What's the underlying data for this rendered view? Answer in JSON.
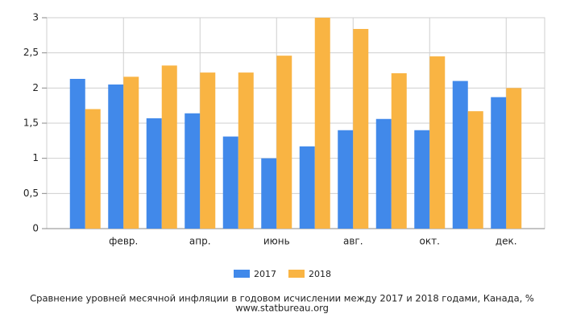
{
  "chart_data": {
    "type": "bar",
    "title": "Сравнение уровней месячной инфляции в годовом исчислении между 2017 и 2018 годами, Канада, %",
    "subtitle": "www.statbureau.org",
    "categories": [
      null,
      "февр.",
      null,
      "апр.",
      null,
      "июнь",
      null,
      "авг.",
      null,
      "окт.",
      null,
      "дек."
    ],
    "series": [
      {
        "name": "2017",
        "color": "#4189ea",
        "values": [
          2.13,
          2.05,
          1.57,
          1.64,
          1.31,
          1.0,
          1.17,
          1.4,
          1.56,
          1.4,
          2.1,
          1.87
        ]
      },
      {
        "name": "2018",
        "color": "#f9b443",
        "values": [
          1.7,
          2.16,
          2.32,
          2.22,
          2.22,
          2.46,
          3.0,
          2.84,
          2.21,
          2.45,
          1.67,
          2.0
        ]
      }
    ],
    "ylim": [
      0,
      3
    ],
    "yticks": [
      0,
      {
        "value": 0.5,
        "label": "0,5"
      },
      1,
      {
        "value": 1.5,
        "label": "1,5"
      },
      2,
      {
        "value": 2.5,
        "label": "2,5"
      },
      3
    ],
    "grid": true
  }
}
